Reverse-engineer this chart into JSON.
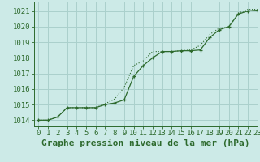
{
  "title": "Graphe pression niveau de la mer (hPa)",
  "bg_color": "#cceae7",
  "grid_color": "#aad0cc",
  "line_color": "#2d6a2d",
  "xlim": [
    -0.5,
    23
  ],
  "ylim": [
    1013.6,
    1021.6
  ],
  "yticks": [
    1014,
    1015,
    1016,
    1017,
    1018,
    1019,
    1020,
    1021
  ],
  "xticks": [
    0,
    1,
    2,
    3,
    4,
    5,
    6,
    7,
    8,
    9,
    10,
    11,
    12,
    13,
    14,
    15,
    16,
    17,
    18,
    19,
    20,
    21,
    22,
    23
  ],
  "x_solid": [
    0,
    1,
    2,
    3,
    4,
    5,
    6,
    7,
    8,
    9,
    10,
    11,
    12,
    13,
    14,
    15,
    16,
    17,
    18,
    19,
    20,
    21,
    22,
    23
  ],
  "y_solid": [
    1014.0,
    1014.0,
    1014.2,
    1014.8,
    1014.8,
    1014.8,
    1014.8,
    1015.0,
    1015.1,
    1015.3,
    1016.8,
    1017.5,
    1018.0,
    1018.4,
    1018.4,
    1018.45,
    1018.45,
    1018.5,
    1019.3,
    1019.8,
    1020.0,
    1020.8,
    1021.0,
    1021.05
  ],
  "x_dotted": [
    0,
    1,
    2,
    3,
    4,
    5,
    6,
    7,
    8,
    9,
    10,
    11,
    12,
    13,
    14,
    15,
    16,
    17,
    18,
    19,
    20,
    21,
    22,
    23
  ],
  "y_dotted": [
    1014.0,
    1014.0,
    1014.2,
    1014.8,
    1014.8,
    1014.8,
    1014.8,
    1015.05,
    1015.35,
    1016.1,
    1017.5,
    1017.8,
    1018.4,
    1018.4,
    1018.4,
    1018.45,
    1018.5,
    1018.8,
    1019.5,
    1019.9,
    1019.95,
    1020.85,
    1021.1,
    1021.1
  ],
  "title_fontsize": 8,
  "tick_fontsize": 6.5,
  "title_color": "#2d6a2d",
  "title_fontweight": "bold"
}
